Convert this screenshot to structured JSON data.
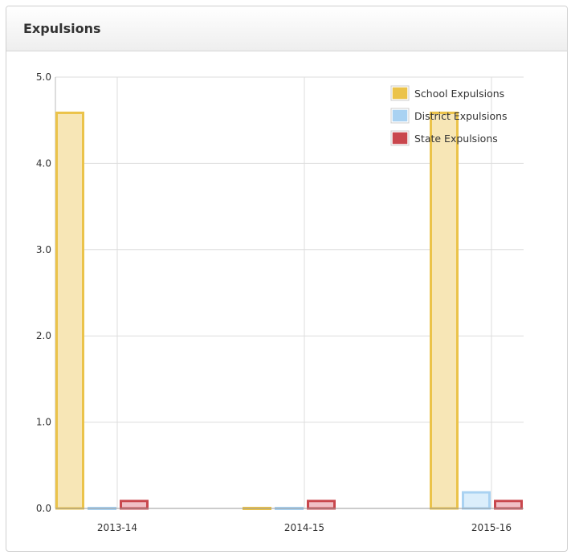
{
  "panel": {
    "title": "Expulsions"
  },
  "colors": {
    "school_fill": "#f7e6b6",
    "school_stroke": "#ebc34a",
    "district_fill": "#dbeefb",
    "district_stroke": "#a9d2f2",
    "state_fill": "#f1c0c6",
    "state_stroke": "#c9474d",
    "grid": "#dddddd"
  },
  "chart_data": {
    "type": "bar",
    "categories": [
      "2013-14",
      "2014-15",
      "2015-16"
    ],
    "series": [
      {
        "name": "School Expulsions",
        "values": [
          4.6,
          0.0,
          4.6
        ],
        "color": "#ebc34a"
      },
      {
        "name": "District Expulsions",
        "values": [
          0.0,
          0.0,
          0.2
        ],
        "color": "#a9d2f2"
      },
      {
        "name": "State Expulsions",
        "values": [
          0.1,
          0.1,
          0.1
        ],
        "color": "#c9474d"
      }
    ],
    "y_ticks": [
      "0.0",
      "1.0",
      "2.0",
      "3.0",
      "4.0",
      "5.0"
    ],
    "ylim": [
      0,
      5
    ],
    "grid": true,
    "legend_position": "top-right"
  }
}
